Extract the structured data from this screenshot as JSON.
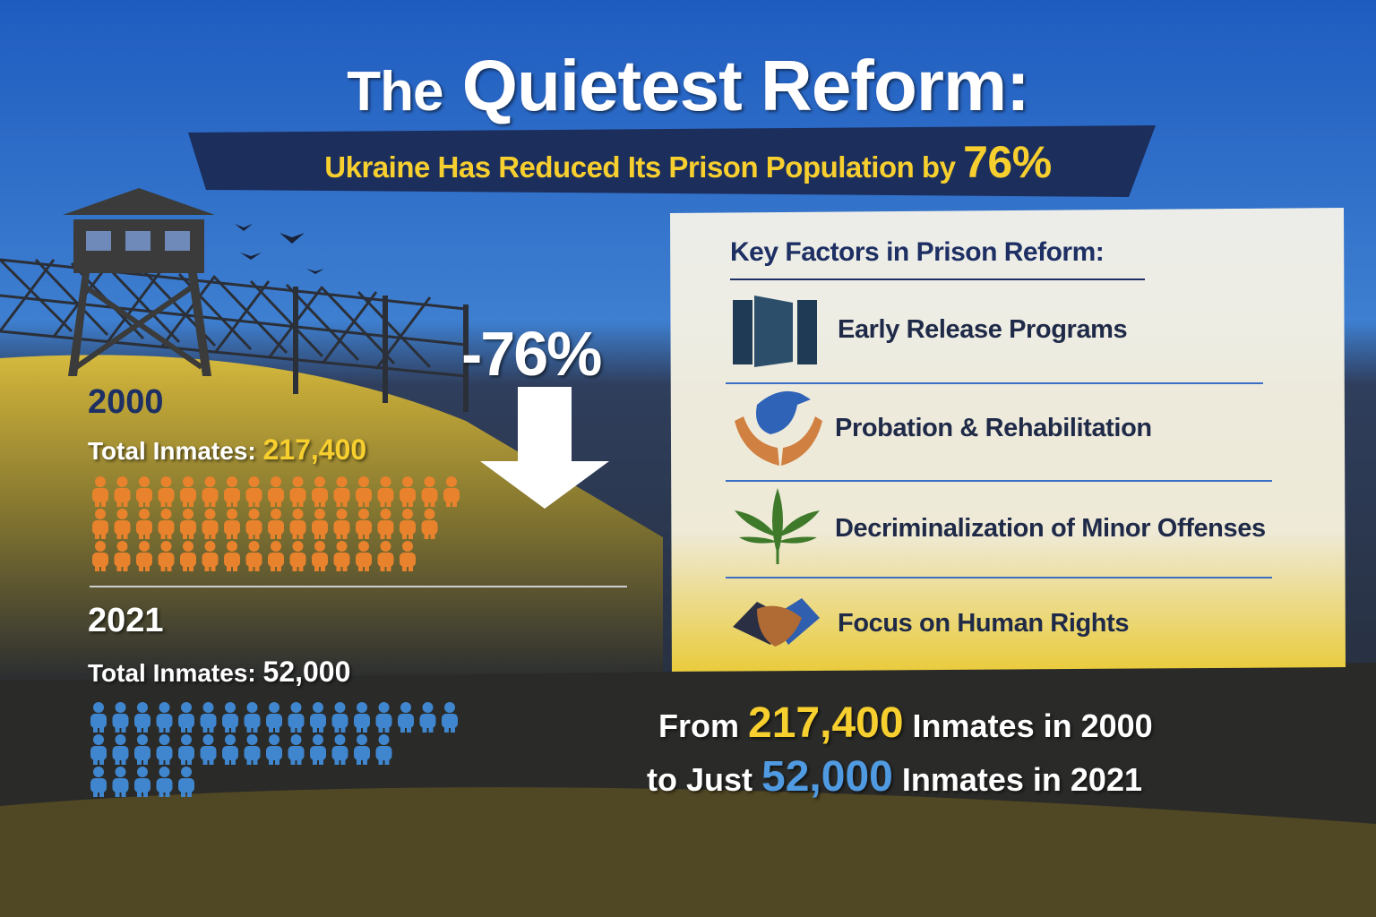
{
  "title": {
    "lead": "The",
    "main": "Quietest Reform:"
  },
  "subtitle": {
    "text": "Ukraine Has Reduced Its Prison Population by",
    "highlight": "76%"
  },
  "change": "-76%",
  "before": {
    "year": "2000",
    "label": "Total Inmates:",
    "value": "217,400"
  },
  "after": {
    "year": "2021",
    "label": "Total Inmates:",
    "value": "52,000"
  },
  "factors": {
    "heading": "Key Factors in Prison Reform:",
    "items": [
      "Early Release Programs",
      "Probation & Rehabilitation",
      "Decriminalization of Minor Offenses",
      "Focus on Human Rights"
    ]
  },
  "summary": {
    "line1": [
      "From",
      "217,400",
      "Inmates in 2000"
    ],
    "line2": [
      "to Just",
      "52,000",
      "Inmates in 2021"
    ]
  }
}
